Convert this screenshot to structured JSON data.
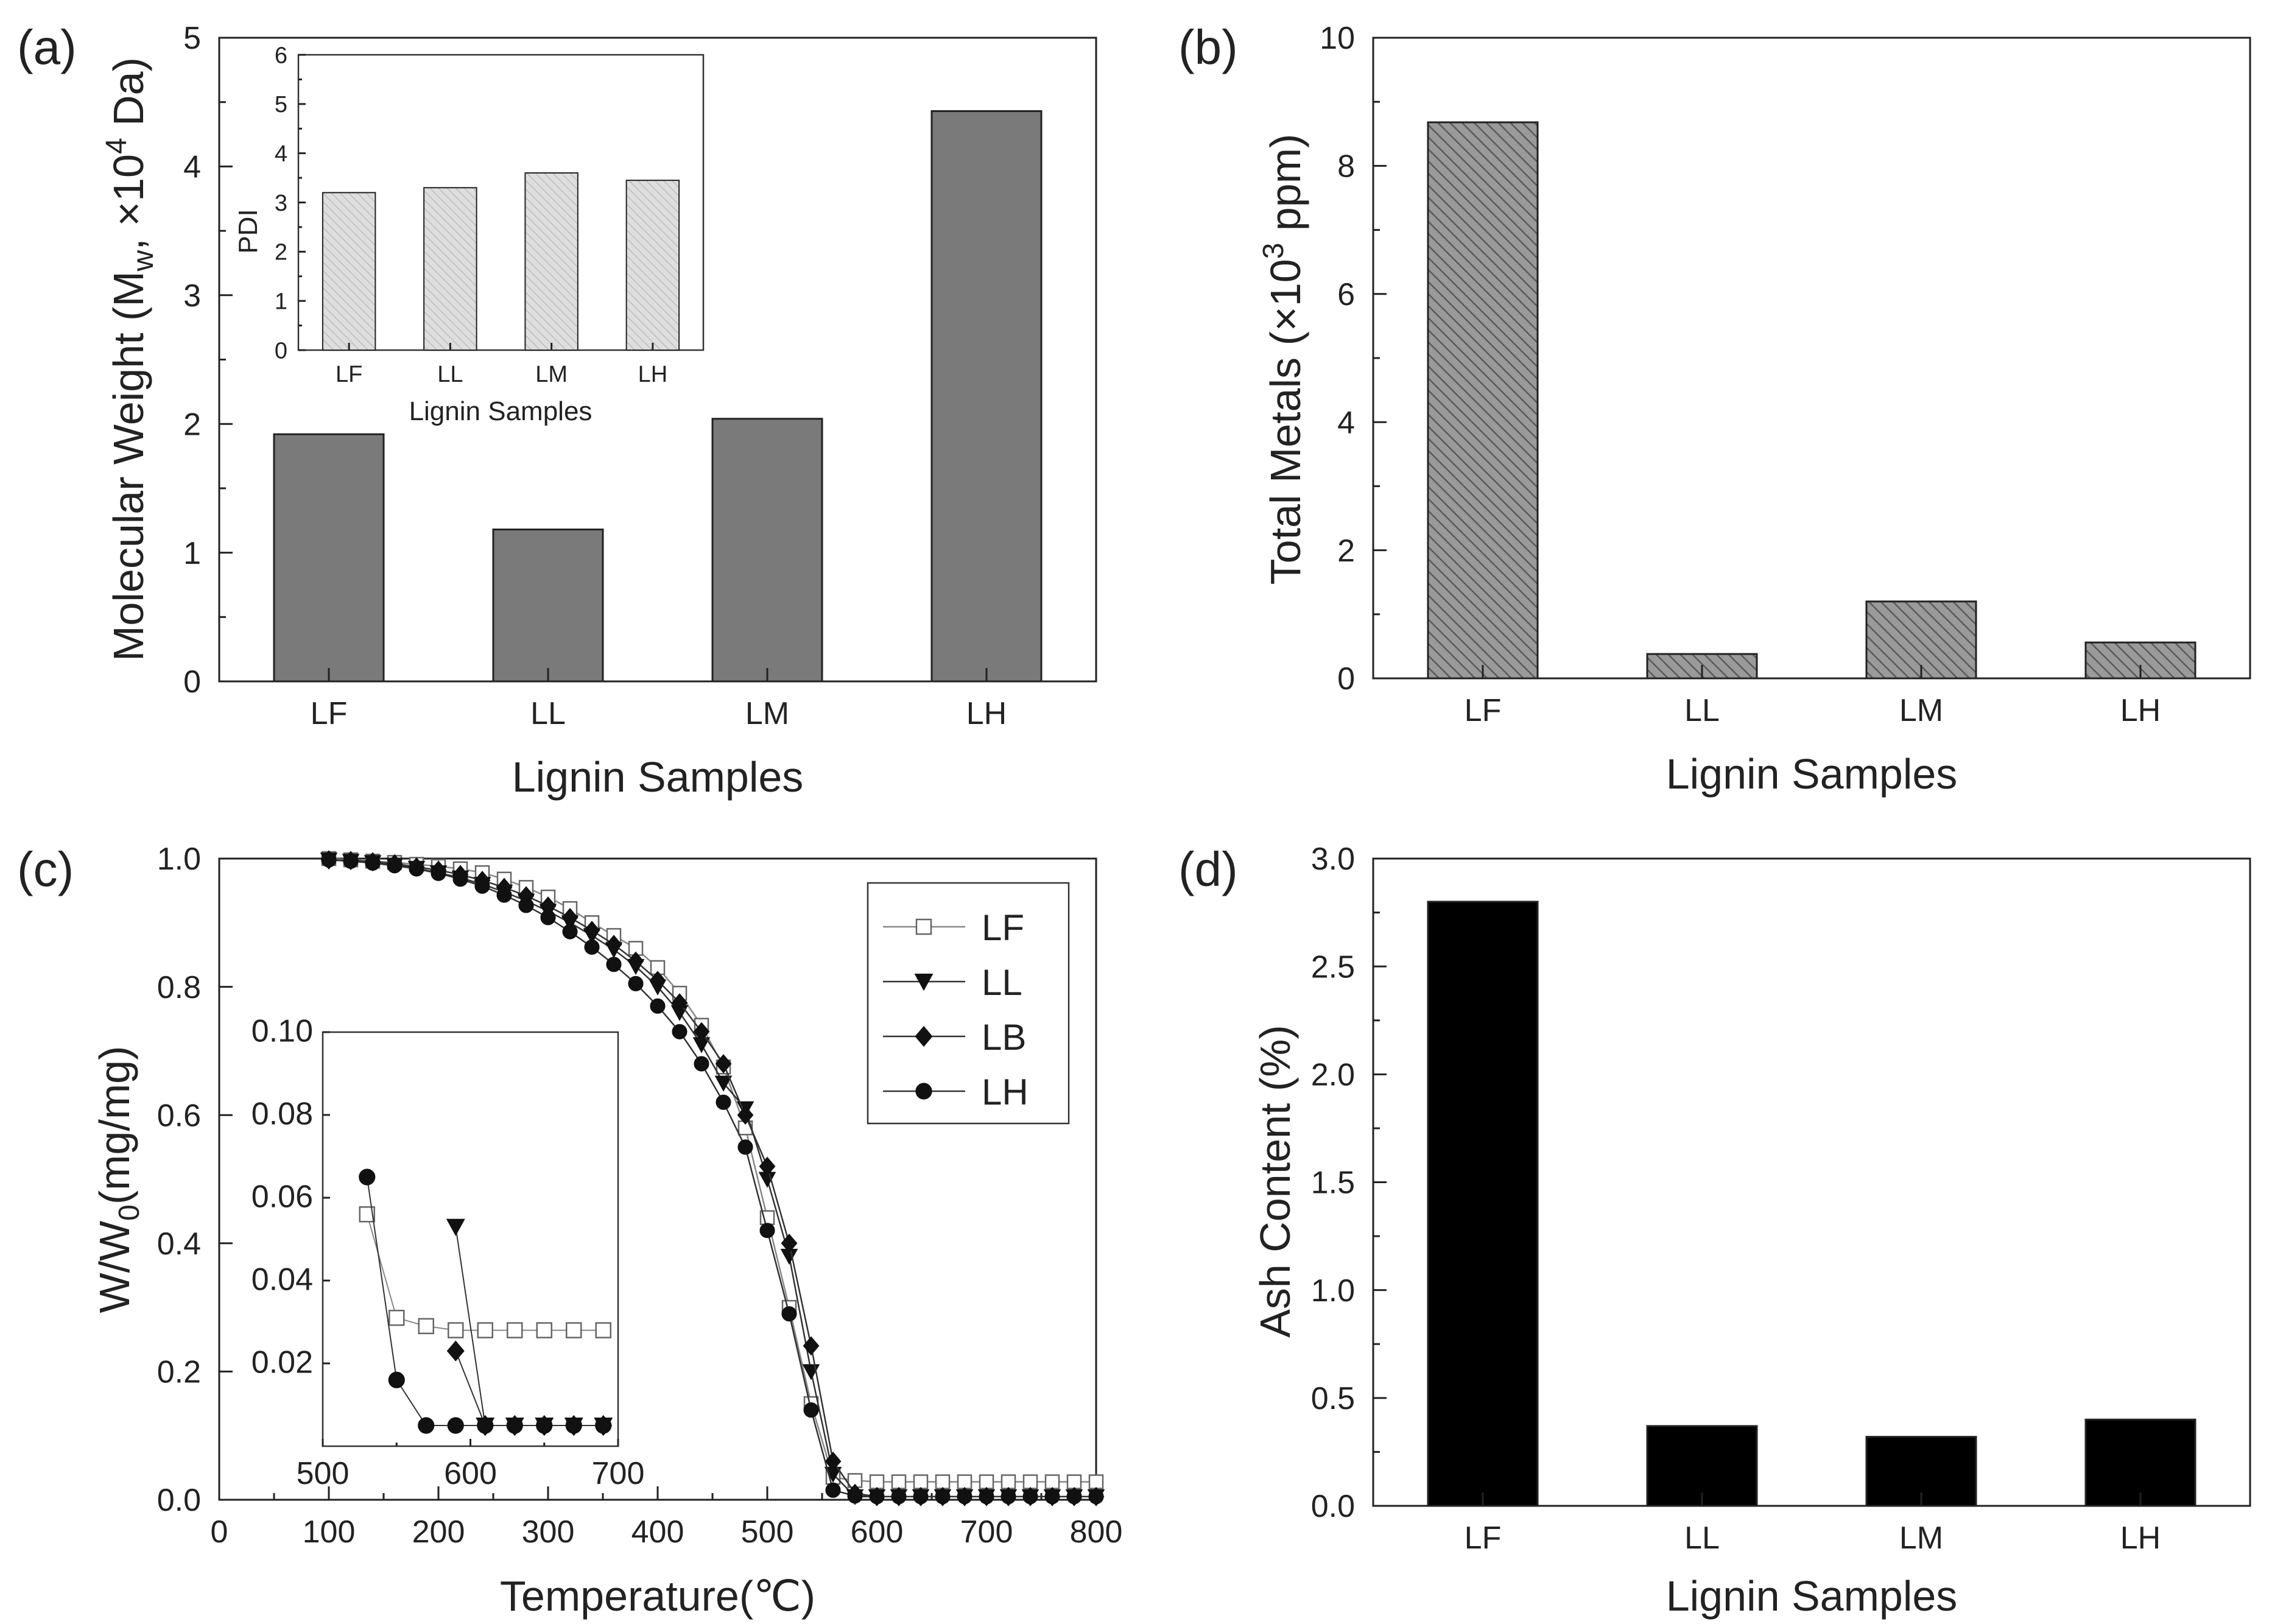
{
  "chart_data": [
    {
      "id": "a",
      "panel_label": "(a)",
      "type": "bar",
      "categories": [
        "LF",
        "LL",
        "LM",
        "LH"
      ],
      "values": [
        1.92,
        1.18,
        2.04,
        4.43
      ],
      "ylim": [
        0,
        5
      ],
      "yticks": [
        "0",
        "1",
        "2",
        "3",
        "4",
        "5"
      ],
      "xlabel": "Lignin Samples",
      "ylabel": "Molecular Weight (M",
      "ylabel_sub": "w",
      "ylabel_mid": ", ×10",
      "ylabel_sup": "4",
      "ylabel_end": " Da)",
      "bar_color": "#7a7a7a",
      "inset": {
        "type": "bar",
        "categories": [
          "LF",
          "LL",
          "LM",
          "LH"
        ],
        "values": [
          3.2,
          3.3,
          3.6,
          3.45
        ],
        "ylim": [
          0,
          6
        ],
        "yticks": [
          "0",
          "1",
          "2",
          "3",
          "4",
          "5",
          "6"
        ],
        "xlabel": "Lignin Samples",
        "ylabel": "PDI",
        "bar_color": "#d9d9d9"
      }
    },
    {
      "id": "b",
      "panel_label": "(b)",
      "type": "bar",
      "categories": [
        "LF",
        "LL",
        "LM",
        "LH"
      ],
      "values": [
        8.68,
        0.38,
        1.2,
        0.56
      ],
      "ylim": [
        0,
        10
      ],
      "yticks": [
        "0",
        "2",
        "4",
        "6",
        "8",
        "10"
      ],
      "xlabel": "Lignin Samples",
      "ylabel": "Total Metals (×10",
      "ylabel_sup": "3",
      "ylabel_end": " ppm)",
      "bar_color": "#8c8c8c",
      "pattern": "diagonal-hatch"
    },
    {
      "id": "c",
      "panel_label": "(c)",
      "type": "line",
      "xlim": [
        0,
        800
      ],
      "ylim": [
        0,
        1.0
      ],
      "xticks": [
        "0",
        "100",
        "200",
        "300",
        "400",
        "500",
        "600",
        "700",
        "800"
      ],
      "yticks": [
        "0.0",
        "0.2",
        "0.4",
        "0.6",
        "0.8",
        "1.0"
      ],
      "xlabel": "Temperature(℃)",
      "ylabel": "W/W",
      "ylabel_sub": "0",
      "ylabel_end": "(mg/mg)",
      "legend": [
        "LF",
        "LL",
        "LB",
        "LH"
      ],
      "legend_position": "top-right",
      "series": [
        {
          "name": "LF",
          "marker": "open-square",
          "x": [
            100,
            120,
            140,
            160,
            180,
            200,
            220,
            240,
            260,
            280,
            300,
            320,
            340,
            360,
            380,
            400,
            420,
            440,
            460,
            480,
            500,
            520,
            540,
            560,
            580,
            600,
            620,
            640,
            660,
            680,
            700,
            720,
            740,
            760,
            780,
            800
          ],
          "y": [
            1.0,
            0.998,
            0.996,
            0.994,
            0.991,
            0.988,
            0.984,
            0.978,
            0.968,
            0.955,
            0.94,
            0.922,
            0.9,
            0.88,
            0.86,
            0.83,
            0.79,
            0.74,
            0.675,
            0.58,
            0.44,
            0.3,
            0.15,
            0.035,
            0.03,
            0.028,
            0.028,
            0.028,
            0.028,
            0.028,
            0.028,
            0.028,
            0.028,
            0.028,
            0.028,
            0.028
          ]
        },
        {
          "name": "LL",
          "marker": "filled-triangle-down",
          "x": [
            100,
            120,
            140,
            160,
            180,
            200,
            220,
            240,
            260,
            280,
            300,
            320,
            340,
            360,
            380,
            400,
            420,
            440,
            460,
            480,
            500,
            520,
            540,
            560,
            580,
            600,
            620,
            640,
            660,
            680,
            700,
            720,
            740,
            760,
            780,
            800
          ],
          "y": [
            0.998,
            0.996,
            0.994,
            0.99,
            0.985,
            0.978,
            0.97,
            0.96,
            0.948,
            0.934,
            0.918,
            0.9,
            0.88,
            0.858,
            0.832,
            0.8,
            0.76,
            0.71,
            0.65,
            0.61,
            0.5,
            0.38,
            0.2,
            0.04,
            0.005,
            0.005,
            0.005,
            0.005,
            0.005,
            0.005,
            0.005,
            0.005,
            0.005,
            0.005,
            0.005,
            0.005
          ]
        },
        {
          "name": "LB",
          "marker": "filled-diamond",
          "x": [
            100,
            120,
            140,
            160,
            180,
            200,
            220,
            240,
            260,
            280,
            300,
            320,
            340,
            360,
            380,
            400,
            420,
            440,
            460,
            480,
            500,
            520,
            540,
            560,
            580,
            600,
            620,
            640,
            660,
            680,
            700,
            720,
            740,
            760,
            780,
            800
          ],
          "y": [
            0.998,
            0.997,
            0.995,
            0.992,
            0.987,
            0.982,
            0.975,
            0.966,
            0.955,
            0.942,
            0.926,
            0.908,
            0.888,
            0.866,
            0.84,
            0.81,
            0.775,
            0.73,
            0.68,
            0.6,
            0.52,
            0.4,
            0.24,
            0.06,
            0.01,
            0.005,
            0.005,
            0.005,
            0.005,
            0.005,
            0.005,
            0.005,
            0.005,
            0.005,
            0.005,
            0.005
          ]
        },
        {
          "name": "LH",
          "marker": "filled-circle",
          "x": [
            100,
            120,
            140,
            160,
            180,
            200,
            220,
            240,
            260,
            280,
            300,
            320,
            340,
            360,
            380,
            400,
            420,
            440,
            460,
            480,
            500,
            520,
            540,
            560,
            580,
            600,
            620,
            640,
            660,
            680,
            700,
            720,
            740,
            760,
            780,
            800
          ],
          "y": [
            0.998,
            0.996,
            0.993,
            0.989,
            0.984,
            0.977,
            0.968,
            0.957,
            0.943,
            0.927,
            0.908,
            0.886,
            0.862,
            0.835,
            0.805,
            0.77,
            0.73,
            0.68,
            0.62,
            0.55,
            0.42,
            0.29,
            0.14,
            0.015,
            0.006,
            0.005,
            0.005,
            0.005,
            0.005,
            0.005,
            0.005,
            0.005,
            0.005,
            0.005,
            0.005,
            0.005
          ]
        }
      ],
      "inset": {
        "type": "line",
        "xlim": [
          500,
          700
        ],
        "ylim": [
          0,
          0.1
        ],
        "xticks": [
          "500",
          "600",
          "700"
        ],
        "yticks": [
          "0.02",
          "0.04",
          "0.06",
          "0.08",
          "0.10"
        ],
        "series": [
          {
            "name": "LF",
            "marker": "open-square",
            "x": [
              530,
              550,
              570,
              590,
              610,
              630,
              650,
              670,
              690
            ],
            "y": [
              0.056,
              0.031,
              0.029,
              0.028,
              0.028,
              0.028,
              0.028,
              0.028,
              0.028
            ]
          },
          {
            "name": "LL",
            "marker": "filled-triangle-down",
            "x": [
              590,
              610,
              630,
              650,
              670,
              690
            ],
            "y": [
              0.053,
              0.005,
              0.005,
              0.005,
              0.005,
              0.005
            ]
          },
          {
            "name": "LB",
            "marker": "filled-diamond",
            "x": [
              590,
              610,
              630,
              650,
              670,
              690
            ],
            "y": [
              0.023,
              0.005,
              0.005,
              0.005,
              0.005,
              0.005
            ]
          },
          {
            "name": "LH",
            "marker": "filled-circle",
            "x": [
              530,
              550,
              570,
              590,
              610,
              630,
              650,
              670,
              690
            ],
            "y": [
              0.065,
              0.016,
              0.005,
              0.005,
              0.005,
              0.005,
              0.005,
              0.005,
              0.005
            ]
          }
        ]
      }
    },
    {
      "id": "d",
      "panel_label": "(d)",
      "type": "bar",
      "categories": [
        "LF",
        "LL",
        "LM",
        "LH"
      ],
      "values": [
        2.8,
        0.37,
        0.32,
        0.4
      ],
      "ylim": [
        0,
        3.0
      ],
      "yticks": [
        "0.0",
        "0.5",
        "1.0",
        "1.5",
        "2.0",
        "2.5",
        "3.0"
      ],
      "xlabel": "Lignin Samples",
      "ylabel": "Ash Content (%)",
      "bar_color": "#000000"
    }
  ]
}
